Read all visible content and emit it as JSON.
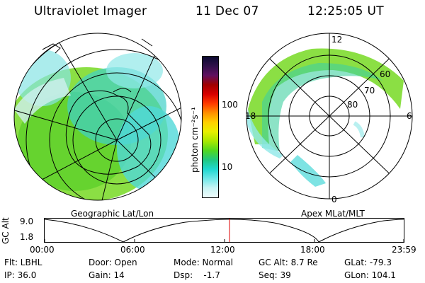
{
  "header": {
    "title": "Ultraviolet Imager",
    "date": "11 Dec 07",
    "time": "12:25:05 UT"
  },
  "left_panel": {
    "caption": "Geographic Lat/Lon"
  },
  "right_panel": {
    "caption": "Apex MLat/MLT",
    "mlt_labels": [
      "12",
      "18",
      "6",
      "0"
    ],
    "lat_labels": [
      "60",
      "70",
      "80"
    ]
  },
  "colorbar": {
    "label": "photon cm⁻²s⁻¹",
    "ticks": [
      "100",
      "10"
    ],
    "colors": [
      "#0a0a30",
      "#30104a",
      "#601060",
      "#a00000",
      "#d80000",
      "#ff3a00",
      "#ff9000",
      "#ffd000",
      "#e8f000",
      "#a8e800",
      "#50d820",
      "#20c880",
      "#20d8d0",
      "#70e8e8",
      "#c8f4f4",
      "#f0fcfc"
    ]
  },
  "timeline": {
    "ylabel": "GC Alt",
    "ytick_top": "9.0",
    "ytick_bottom": "1.8",
    "xticks": [
      "00:00",
      "06:00",
      "12:00",
      "18:00",
      "23:59"
    ],
    "marker_color": "#dd0000"
  },
  "info": {
    "filter": "Flt: LBHL",
    "ip": "IP: 36.0",
    "door": "Door: Open",
    "gain": "Gain: 14",
    "mode": "Mode: Normal",
    "dsp": "Dsp:    -1.7",
    "gc_alt": "GC Alt: 8.7 Re",
    "seq": "Seq: 39",
    "glat": "GLat: -79.3",
    "glon": "GLon: 104.1"
  }
}
